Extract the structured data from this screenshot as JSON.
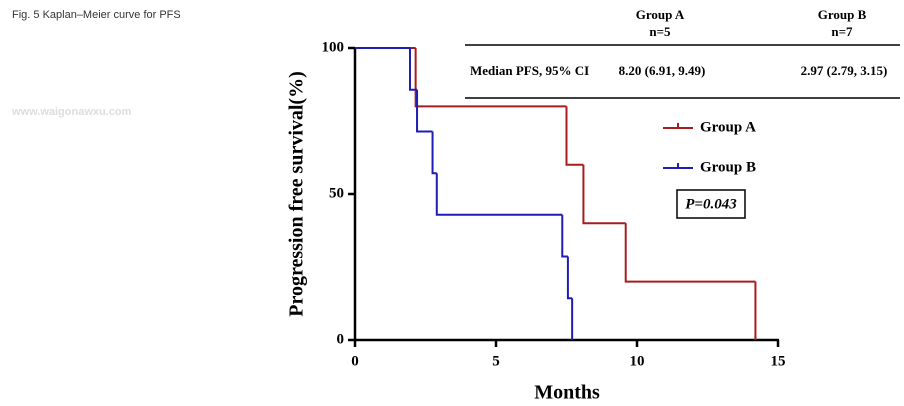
{
  "caption": "Fig. 5 Kaplan–Meier curve for PFS",
  "watermark": "www.waigonawxu.com",
  "table": {
    "columns": [
      {
        "name": "Group A",
        "n": "n=5"
      },
      {
        "name": "Group B",
        "n": "n=7"
      }
    ],
    "row_label": "Median PFS, 95% CI",
    "row": [
      "8.20 (6.91, 9.49)",
      "2.97 (2.79, 3.15)"
    ]
  },
  "chart_data": {
    "type": "step",
    "xlabel": "Months",
    "ylabel": "Progression free survival(%)",
    "xlim": [
      0,
      15
    ],
    "xticks": [
      0,
      5,
      10,
      15
    ],
    "ylim": [
      0,
      100
    ],
    "yticks": [
      0,
      50,
      100
    ],
    "annotation": "P=0.043",
    "series": [
      {
        "name": "Group A",
        "color": "#a51d1d",
        "x": [
          0,
          2.15,
          7.5,
          8.1,
          9.6,
          14.2
        ],
        "values": [
          100,
          80,
          60,
          40,
          20,
          0
        ]
      },
      {
        "name": "Group B",
        "color": "#1e1eb4",
        "x": [
          0,
          1.95,
          2.2,
          2.75,
          2.9,
          7.35,
          7.55,
          7.7
        ],
        "values": [
          100,
          85.7,
          71.4,
          57.1,
          42.9,
          28.6,
          14.3,
          0
        ]
      }
    ]
  }
}
